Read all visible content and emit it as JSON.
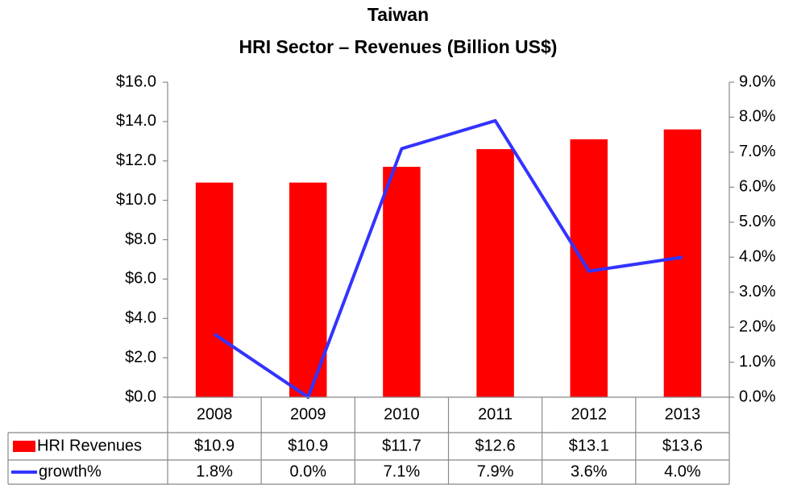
{
  "chart_data": {
    "type": "bar",
    "title": "Taiwan",
    "subtitle": "HRI Sector – Revenues (Billion US$)",
    "categories": [
      "2008",
      "2009",
      "2010",
      "2011",
      "2012",
      "2013"
    ],
    "series": [
      {
        "name": "HRI Revenues",
        "type": "bar",
        "color": "#ff0000",
        "values": [
          10.9,
          10.9,
          11.7,
          12.6,
          13.1,
          13.6
        ],
        "value_labels": [
          "$10.9",
          "$10.9",
          "$11.7",
          "$12.6",
          "$13.1",
          "$13.6"
        ]
      },
      {
        "name": "growth%",
        "type": "line",
        "axis": "y2",
        "color": "#3333ff",
        "values": [
          1.8,
          0.0,
          7.1,
          7.9,
          3.6,
          4.0
        ],
        "value_labels": [
          "1.8%",
          "0.0%",
          "7.1%",
          "7.9%",
          "3.6%",
          "4.0%"
        ]
      }
    ],
    "ylim": [
      0,
      16
    ],
    "yticks": [
      {
        "value": 0,
        "label": "$0.0"
      },
      {
        "value": 2,
        "label": "$2.0"
      },
      {
        "value": 4,
        "label": "$4.0"
      },
      {
        "value": 6,
        "label": "$6.0"
      },
      {
        "value": 8,
        "label": "$8.0"
      },
      {
        "value": 10,
        "label": "$10.0"
      },
      {
        "value": 12,
        "label": "$12.0"
      },
      {
        "value": 14,
        "label": "$14.0"
      },
      {
        "value": 16,
        "label": "$16.0"
      }
    ],
    "y2lim": [
      0,
      9
    ],
    "y2ticks": [
      {
        "value": 0,
        "label": "0.0%"
      },
      {
        "value": 1,
        "label": "1.0%"
      },
      {
        "value": 2,
        "label": "2.0%"
      },
      {
        "value": 3,
        "label": "3.0%"
      },
      {
        "value": 4,
        "label": "4.0%"
      },
      {
        "value": 5,
        "label": "5.0%"
      },
      {
        "value": 6,
        "label": "6.0%"
      },
      {
        "value": 7,
        "label": "7.0%"
      },
      {
        "value": 8,
        "label": "8.0%"
      },
      {
        "value": 9,
        "label": "9.0%"
      }
    ]
  }
}
